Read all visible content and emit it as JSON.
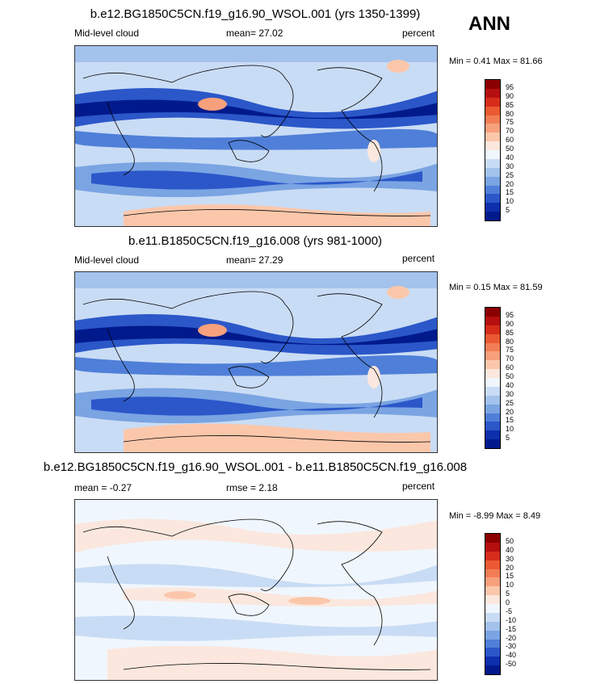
{
  "season": "ANN",
  "panels": [
    {
      "title": "b.e12.BG1850C5CN.f19_g16.90_WSOL.001 (yrs 1350-1399)",
      "left_label": "Mid-level cloud",
      "mid_label": "mean=  27.02",
      "units": "percent",
      "minmax": "Min =   0.41 Max =  81.66",
      "colorbar": {
        "labels": [
          "95",
          "90",
          "85",
          "80",
          "75",
          "70",
          "60",
          "50",
          "40",
          "30",
          "25",
          "20",
          "15",
          "10",
          "5"
        ],
        "colors": [
          "#8b0000",
          "#b50f0f",
          "#d62d1a",
          "#eb5a32",
          "#f27d55",
          "#f7a07c",
          "#fbc7ab",
          "#fbe7dd",
          "#f0f6fd",
          "#c9dcf5",
          "#a3c2ec",
          "#7aa4e2",
          "#4f7fd8",
          "#2b57c9",
          "#0d2fad",
          "#001a8c"
        ]
      }
    },
    {
      "title": "b.e11.B1850C5CN.f19_g16.008 (yrs 981-1000)",
      "left_label": "Mid-level cloud",
      "mid_label": "mean=  27.29",
      "units": "percent",
      "minmax": "Min =   0.15 Max =  81.59",
      "colorbar": {
        "labels": [
          "95",
          "90",
          "85",
          "80",
          "75",
          "70",
          "60",
          "50",
          "40",
          "30",
          "25",
          "20",
          "15",
          "10",
          "5"
        ],
        "colors": [
          "#8b0000",
          "#b50f0f",
          "#d62d1a",
          "#eb5a32",
          "#f27d55",
          "#f7a07c",
          "#fbc7ab",
          "#fbe7dd",
          "#f0f6fd",
          "#c9dcf5",
          "#a3c2ec",
          "#7aa4e2",
          "#4f7fd8",
          "#2b57c9",
          "#0d2fad",
          "#001a8c"
        ]
      }
    },
    {
      "title": "b.e12.BG1850C5CN.f19_g16.90_WSOL.001 - b.e11.B1850C5CN.f19_g16.008",
      "left_label": "mean =  -0.27",
      "mid_label": "rmse =   2.18",
      "units": "percent",
      "minmax": "Min =  -8.99 Max =   8.49",
      "colorbar": {
        "labels": [
          "50",
          "40",
          "30",
          "20",
          "15",
          "10",
          "5",
          "0",
          "-5",
          "-10",
          "-15",
          "-20",
          "-30",
          "-40",
          "-50"
        ],
        "colors": [
          "#8b0000",
          "#b50f0f",
          "#d62d1a",
          "#eb5a32",
          "#f27d55",
          "#f7a07c",
          "#fbc7ab",
          "#fbe7dd",
          "#f0f6fd",
          "#c9dcf5",
          "#a3c2ec",
          "#7aa4e2",
          "#4f7fd8",
          "#2b57c9",
          "#0d2fad",
          "#001a8c"
        ]
      }
    }
  ]
}
